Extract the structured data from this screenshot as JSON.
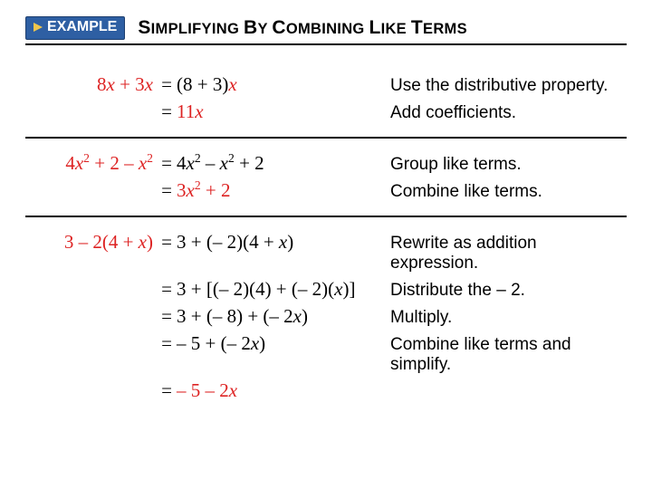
{
  "badge": {
    "label": "EXAMPLE"
  },
  "title": {
    "parts": [
      "S",
      "IMPLIFYING ",
      "B",
      "Y ",
      "C",
      "OMBINING ",
      "L",
      "IKE ",
      "T",
      "ERMS"
    ]
  },
  "colors": {
    "badge_bg": "#2e5fa3",
    "badge_border": "#1d3e6e",
    "badge_text": "#ffffff",
    "badge_icon": "#f0c64c",
    "text": "#000000",
    "red": "#d22222",
    "rule": "#000000",
    "bg": "#ffffff"
  },
  "sections": [
    {
      "rows": [
        {
          "lhs": [
            {
              "t": "8",
              "r": true
            },
            {
              "t": "x",
              "i": true,
              "r": true
            },
            {
              "t": " + 3",
              "r": true
            },
            {
              "t": "x",
              "i": true,
              "r": true
            }
          ],
          "eq": "=",
          "rhs": [
            {
              "t": "(8 + 3)"
            },
            {
              "t": "x",
              "i": true,
              "r": true
            }
          ],
          "explain": "Use the distributive property."
        },
        {
          "lhs": [],
          "eq": "=",
          "rhs": [
            {
              "t": " 11",
              "r": true
            },
            {
              "t": "x",
              "i": true,
              "r": true
            }
          ],
          "explain": "Add coefficients."
        }
      ]
    },
    {
      "rows": [
        {
          "lhs": [
            {
              "t": "4",
              "r": true
            },
            {
              "t": "x",
              "i": true,
              "r": true
            },
            {
              "t": "2",
              "sup": true,
              "r": true
            },
            {
              "t": " + 2 – ",
              "r": true
            },
            {
              "t": "x",
              "i": true,
              "r": true
            },
            {
              "t": "2",
              "sup": true,
              "r": true
            }
          ],
          "eq": "=",
          "rhs": [
            {
              "t": " 4"
            },
            {
              "t": "x",
              "i": true
            },
            {
              "t": "2",
              "sup": true
            },
            {
              "t": " – "
            },
            {
              "t": "x",
              "i": true
            },
            {
              "t": "2",
              "sup": true
            },
            {
              "t": " + 2"
            }
          ],
          "explain": "Group like terms."
        },
        {
          "lhs": [],
          "eq": "=",
          "rhs": [
            {
              "t": " 3",
              "r": true
            },
            {
              "t": "x",
              "i": true,
              "r": true
            },
            {
              "t": "2",
              "sup": true,
              "r": true
            },
            {
              "t": " + 2",
              "r": true
            }
          ],
          "explain": "Combine like terms."
        }
      ]
    },
    {
      "rows": [
        {
          "lhs": [
            {
              "t": "3 – 2(4 + ",
              "r": true
            },
            {
              "t": "x",
              "i": true,
              "r": true
            },
            {
              "t": ")",
              "r": true
            }
          ],
          "eq": "=",
          "rhs": [
            {
              "t": " 3 + (– 2)(4 + "
            },
            {
              "t": "x",
              "i": true
            },
            {
              "t": ")"
            }
          ],
          "explain": "Rewrite as addition expression."
        },
        {
          "lhs": [],
          "eq": "=",
          "rhs": [
            {
              "t": " 3 + [(– 2)(4) + (– 2)("
            },
            {
              "t": "x",
              "i": true
            },
            {
              "t": ")]"
            }
          ],
          "explain": "Distribute the – 2."
        },
        {
          "lhs": [],
          "eq": "=",
          "rhs": [
            {
              "t": " 3 + (– 8) + (– 2"
            },
            {
              "t": "x",
              "i": true
            },
            {
              "t": ")"
            }
          ],
          "explain": "Multiply."
        },
        {
          "lhs": [],
          "eq": "=",
          "rhs": [
            {
              "t": " – 5 + (– 2"
            },
            {
              "t": "x",
              "i": true
            },
            {
              "t": ")"
            }
          ],
          "explain": "Combine like terms and simplify."
        },
        {
          "lhs": [],
          "eq": "=",
          "rhs": [
            {
              "t": " – 5",
              "r": true
            },
            {
              "t": "   "
            },
            {
              "t": "–",
              "r": true
            },
            {
              "t": "   "
            },
            {
              "t": "2",
              "r": true
            },
            {
              "t": "x",
              "i": true,
              "r": true
            }
          ],
          "explain": ""
        }
      ]
    }
  ]
}
